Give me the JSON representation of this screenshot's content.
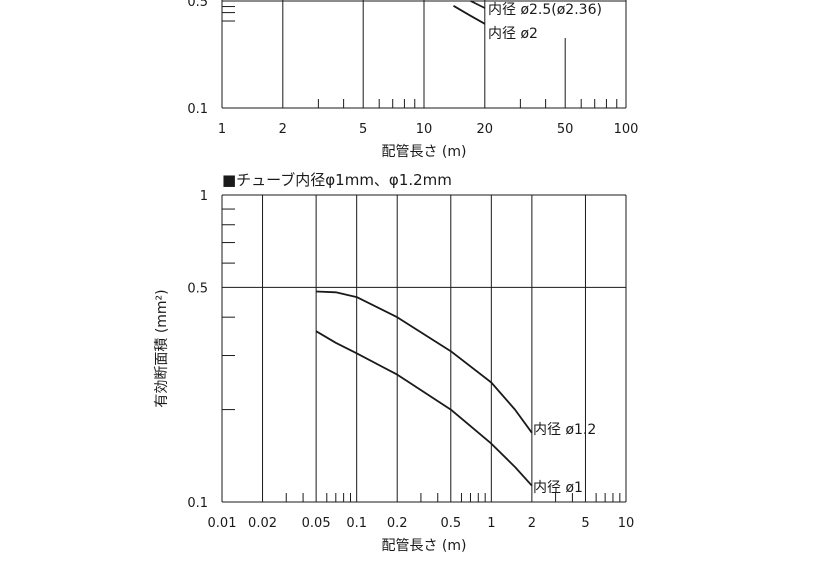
{
  "chart_data": [
    {
      "type": "line",
      "title": "",
      "xlabel": "配管長さ (m)",
      "ylabel": "",
      "x_scale": "log",
      "y_scale": "log",
      "xlim": [
        1,
        100
      ],
      "ylim": [
        0.1,
        0.55
      ],
      "x_ticks": [
        1,
        2,
        5,
        10,
        20,
        50,
        100
      ],
      "x_tick_labels": [
        "1",
        "2",
        "5",
        "10",
        "20",
        "50",
        "100"
      ],
      "y_ticks": [
        0.1,
        0.5
      ],
      "y_tick_labels": [
        "0.1",
        "0.5"
      ],
      "grid": true,
      "series": [
        {
          "name": "内径 ø2.5(ø2.36)",
          "x": [
            17,
            20
          ],
          "y": [
            0.5,
            0.45
          ]
        },
        {
          "name": "内径 ø2",
          "x": [
            14,
            17,
            20
          ],
          "y": [
            0.465,
            0.4,
            0.355
          ]
        }
      ]
    },
    {
      "type": "line",
      "title": "■チューブ内径φ1mm、φ1.2mm",
      "xlabel": "配管長さ (m)",
      "ylabel": "有効断面積 (mm²)",
      "x_scale": "log",
      "y_scale": "log",
      "xlim": [
        0.01,
        10
      ],
      "ylim": [
        0.1,
        1
      ],
      "x_ticks": [
        0.01,
        0.02,
        0.05,
        0.1,
        0.2,
        0.5,
        1,
        2,
        5,
        10
      ],
      "x_tick_labels": [
        "0.01",
        "0.02",
        "0.05",
        "0.1",
        "0.2",
        "0.5",
        "1",
        "2",
        "5",
        "10"
      ],
      "y_ticks": [
        0.1,
        0.5,
        1
      ],
      "y_tick_labels": [
        "0.1",
        "0.5",
        "1"
      ],
      "grid": true,
      "series": [
        {
          "name": "内径 ø1.2",
          "x": [
            0.05,
            0.07,
            0.1,
            0.2,
            0.5,
            1,
            1.5,
            2
          ],
          "y": [
            0.485,
            0.482,
            0.465,
            0.4,
            0.31,
            0.245,
            0.2,
            0.168
          ]
        },
        {
          "name": "内径 ø1",
          "x": [
            0.05,
            0.07,
            0.1,
            0.2,
            0.5,
            1,
            1.5,
            2
          ],
          "y": [
            0.36,
            0.33,
            0.305,
            0.26,
            0.2,
            0.155,
            0.13,
            0.113
          ]
        }
      ]
    }
  ]
}
